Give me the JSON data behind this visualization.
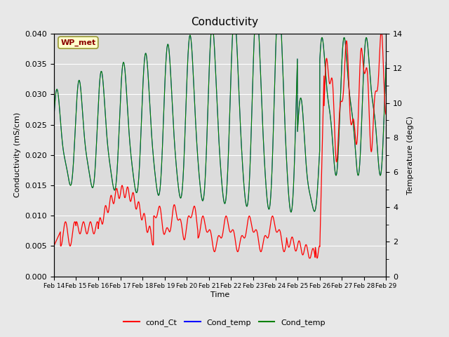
{
  "title": "Conductivity",
  "xlabel": "Time",
  "ylabel_left": "Conductivity (mS/cm)",
  "ylabel_right": "Temperature (degC)",
  "annotation": "WP_met",
  "ylim_left": [
    0.0,
    0.04
  ],
  "ylim_right": [
    0,
    14
  ],
  "yticks_left": [
    0.0,
    0.005,
    0.01,
    0.015,
    0.02,
    0.025,
    0.03,
    0.035,
    0.04
  ],
  "yticks_right": [
    0,
    2,
    4,
    6,
    8,
    10,
    12,
    14
  ],
  "xtick_labels": [
    "Feb 14",
    "Feb 15",
    "Feb 16",
    "Feb 17",
    "Feb 18",
    "Feb 19",
    "Feb 20",
    "Feb 21",
    "Feb 22",
    "Feb 23",
    "Feb 24",
    "Feb 25",
    "Feb 26",
    "Feb 27",
    "Feb 28",
    "Feb 29"
  ],
  "bg_color": "#e8e8e8",
  "plot_bg_color": "#dcdcdc",
  "legend_entries": [
    "cond_Ct",
    "Cond_temp",
    "Cond_temp"
  ],
  "legend_colors": [
    "red",
    "blue",
    "green"
  ]
}
